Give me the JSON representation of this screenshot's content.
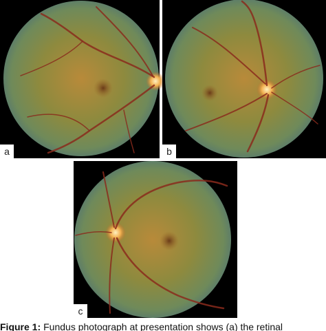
{
  "panels": [
    {
      "label": "a"
    },
    {
      "label": "b"
    },
    {
      "label": "c"
    }
  ],
  "caption": {
    "label": "Figure 1:",
    "text": "Fundus photograph at presentation shows (a) the retinal"
  }
}
